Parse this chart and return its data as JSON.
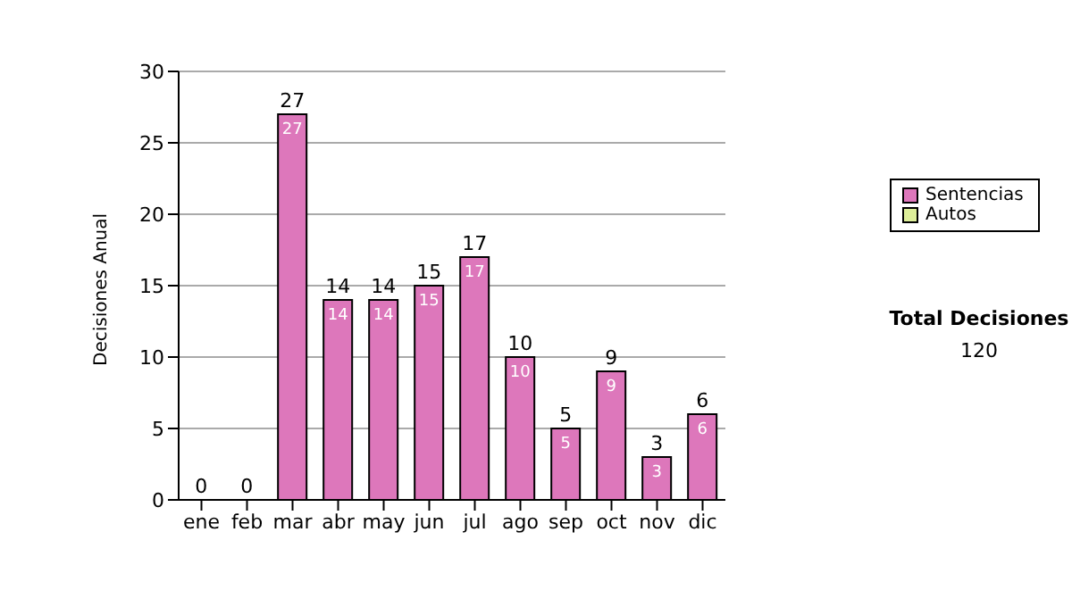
{
  "chart_data": {
    "type": "bar",
    "ylabel": "Decisiones Anual",
    "categories": [
      "ene",
      "feb",
      "mar",
      "abr",
      "may",
      "jun",
      "jul",
      "ago",
      "sep",
      "oct",
      "nov",
      "dic"
    ],
    "series": [
      {
        "name": "Sentencias",
        "color": "#dd77bb",
        "values": [
          0,
          0,
          27,
          14,
          14,
          15,
          17,
          10,
          5,
          9,
          3,
          6
        ],
        "value_labels": [
          null,
          null,
          "27",
          "14",
          "14",
          "15",
          "17",
          "10",
          "5",
          "9",
          "3",
          "6"
        ]
      },
      {
        "name": "Autos",
        "color": "#ddee99",
        "values": [
          null,
          null,
          null,
          null,
          null,
          null,
          null,
          null,
          null,
          null,
          null,
          null
        ]
      }
    ],
    "stacked": true,
    "totals": [
      "0",
      "0",
      "27",
      "14",
      "14",
      "15",
      "17",
      "10",
      "5",
      "9",
      "3",
      "6"
    ],
    "ylim": [
      0,
      30
    ],
    "yticks": [
      0,
      5,
      10,
      15,
      20,
      25,
      30
    ],
    "grid": "y",
    "legend": "right",
    "annotations": [
      "Total Decisiones",
      "120"
    ]
  }
}
